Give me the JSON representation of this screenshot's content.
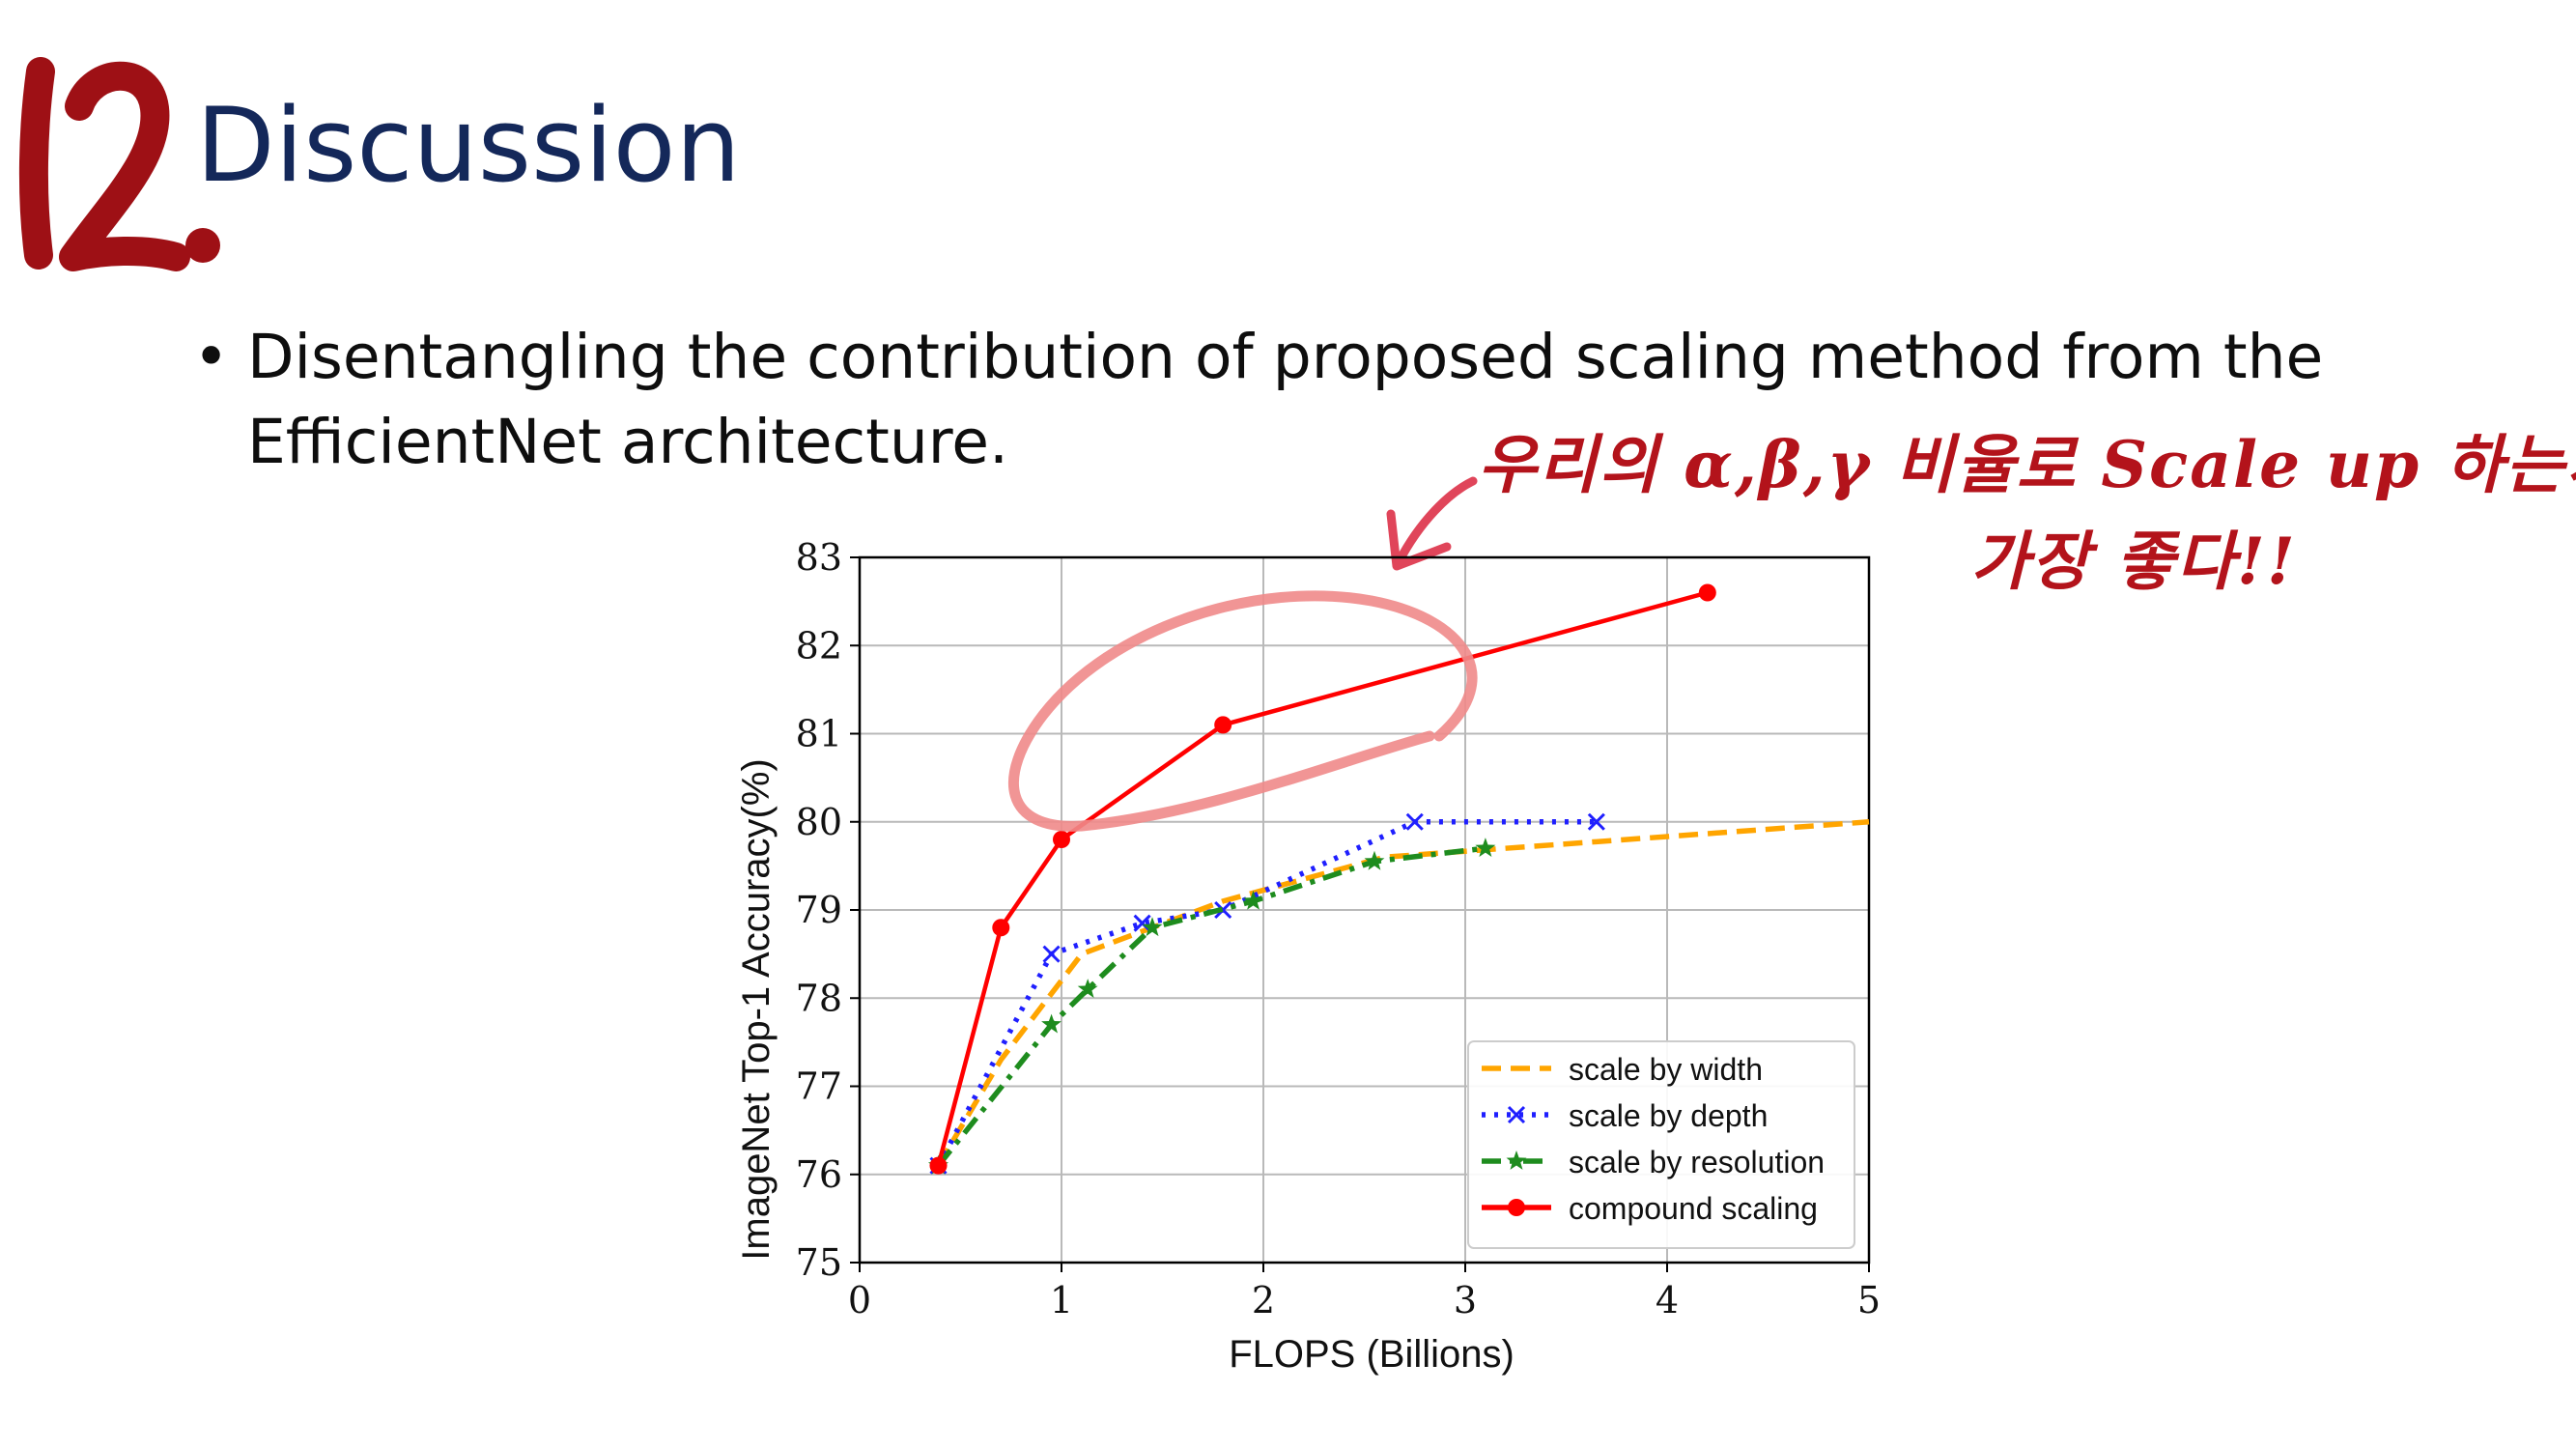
{
  "slide": {
    "number": "12.",
    "title": "Discussion",
    "bullet": "•",
    "bullet_text": "Disentangling the contribution of proposed scaling method from the EfficientNet architecture.",
    "annotation": {
      "line1": "우리의 α,β,γ 비율로 Scale up 하는게",
      "line2": "가장 좋다!!",
      "color": "#b3131b",
      "circle_color": "#f08a8a"
    }
  },
  "chart_data": {
    "type": "line",
    "title": "",
    "xlabel": "FLOPS (Billions)",
    "ylabel": "ImageNet Top-1 Accuracy(%)",
    "xlim": [
      0,
      5
    ],
    "ylim": [
      75,
      83
    ],
    "xticks": [
      "0",
      "1",
      "2",
      "3",
      "4",
      "5"
    ],
    "yticks": [
      "75",
      "76",
      "77",
      "78",
      "79",
      "80",
      "81",
      "82",
      "83"
    ],
    "grid": true,
    "legend_position": "bottom-right",
    "series": [
      {
        "name": "scale by width",
        "color": "#ffa500",
        "style": "dashed",
        "marker": "none",
        "x": [
          0.39,
          0.7,
          1.1,
          1.8,
          2.6,
          5.0
        ],
        "y": [
          76.1,
          77.3,
          78.5,
          79.1,
          79.6,
          80.0
        ]
      },
      {
        "name": "scale by depth",
        "color": "#1f1fff",
        "style": "dotted",
        "marker": "x",
        "x": [
          0.39,
          0.95,
          1.4,
          1.8,
          2.75,
          3.65
        ],
        "y": [
          76.1,
          78.5,
          78.85,
          79.0,
          80.0,
          80.0
        ]
      },
      {
        "name": "scale by resolution",
        "color": "#1e8c1e",
        "style": "dashdot",
        "marker": "star",
        "x": [
          0.39,
          0.95,
          1.13,
          1.45,
          1.95,
          2.55,
          3.1
        ],
        "y": [
          76.1,
          77.7,
          78.1,
          78.8,
          79.1,
          79.55,
          79.7
        ]
      },
      {
        "name": "compound scaling",
        "color": "#ff0000",
        "style": "solid",
        "marker": "circle",
        "x": [
          0.39,
          0.7,
          1.0,
          1.8,
          4.2
        ],
        "y": [
          76.1,
          78.8,
          79.8,
          81.1,
          82.6
        ]
      }
    ]
  }
}
